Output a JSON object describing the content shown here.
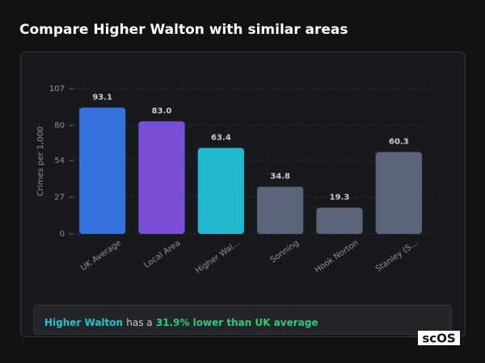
{
  "chart_data": {
    "type": "bar",
    "title": "Compare Higher Walton with similar areas",
    "y_label": "Crimes per 1,000",
    "categories": [
      "UK Average",
      "Local Area",
      "Higher Wal...",
      "Sonning",
      "Hook Norton",
      "Stanley (S..."
    ],
    "values": [
      93.1,
      83.0,
      63.4,
      34.8,
      19.3,
      60.3
    ],
    "value_labels": [
      "93.1",
      "83.0",
      "63.4",
      "34.8",
      "19.3",
      "60.3"
    ],
    "colors": [
      "#3572db",
      "#7a4fd5",
      "#22b8cf",
      "#5b6579",
      "#5b6579",
      "#5b6579"
    ],
    "ylim": [
      0,
      107
    ],
    "yticks": [
      0,
      27,
      54,
      80,
      107
    ],
    "grid": true
  },
  "summary": {
    "area": "Higher Walton",
    "text": "has a",
    "highlight": "31.9% lower than UK average"
  },
  "logo": "scOS"
}
